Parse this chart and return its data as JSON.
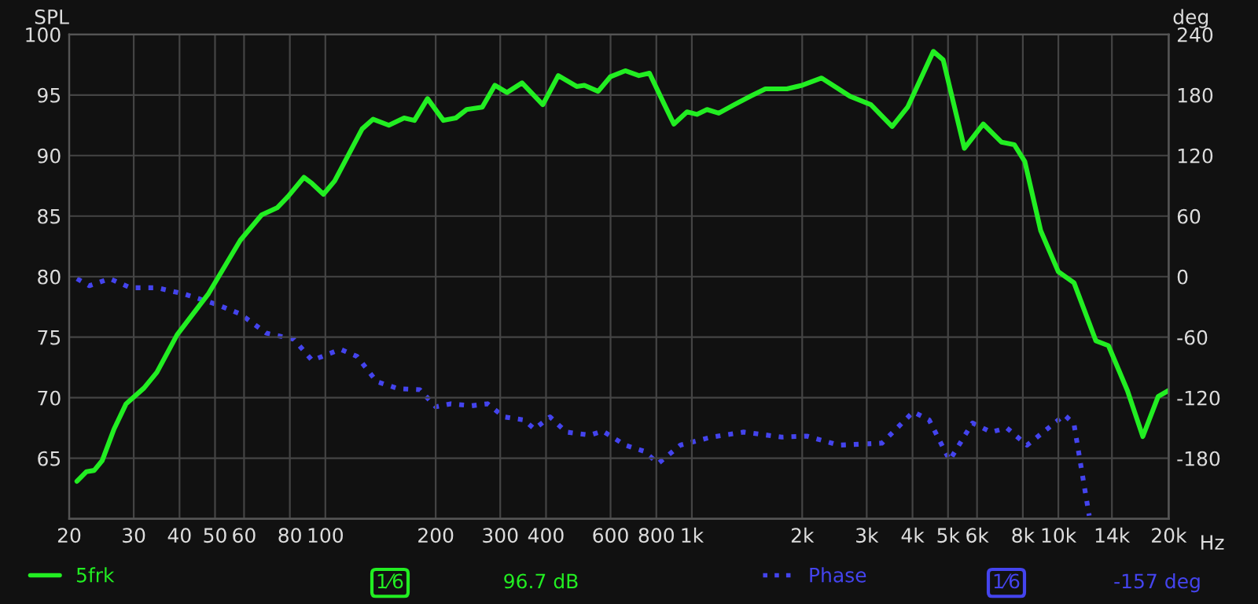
{
  "chart_data": {
    "type": "line",
    "ylabel": "SPL",
    "y2label": "deg",
    "log": "x",
    "grid": true,
    "legend": "bottom",
    "xlim": [
      20,
      20000
    ],
    "xticks": [
      20,
      30,
      40,
      50,
      60,
      80,
      100,
      200,
      300,
      400,
      600,
      800,
      {
        "value": 1000,
        "label": "1k"
      },
      {
        "value": 2000,
        "label": "2k"
      },
      {
        "value": 3000,
        "label": "3k"
      },
      {
        "value": 4000,
        "label": "4k"
      },
      {
        "value": 5000,
        "label": "5k"
      },
      {
        "value": 6000,
        "label": "6k"
      },
      {
        "value": 8000,
        "label": "8k"
      },
      {
        "value": 10000,
        "label": "10k"
      },
      {
        "value": 14000,
        "label": "14k"
      },
      {
        "value": 20000,
        "label": "20k"
      }
    ],
    "xlabel": "Hz",
    "ylim": [
      60,
      100
    ],
    "yticks": [
      65,
      70,
      75,
      80,
      85,
      90,
      95,
      100
    ],
    "y2lim": [
      -240,
      240
    ],
    "y2ticks": [
      -180,
      -120,
      -60,
      0,
      60,
      120,
      180,
      240
    ],
    "series": [
      {
        "name": "5frk",
        "color": "#22ee22",
        "line_style": "solid",
        "x": [
          21,
          22.3,
          23.4,
          24.6,
          26.5,
          28.6,
          32,
          34.7,
          39.4,
          48,
          58.6,
          67,
          74,
          79,
          87.4,
          91.9,
          98.8,
          106,
          126,
          135,
          149,
          164,
          175,
          190,
          210,
          227,
          243,
          268,
          290,
          313,
          344,
          392,
          432,
          485,
          509,
          555,
          599,
          658,
          717,
          766,
          842,
          893,
          970,
          1032,
          1100,
          1184,
          1305,
          1446,
          1587,
          1817,
          2000,
          2260,
          2700,
          3080,
          3520,
          3880,
          4560,
          4850,
          5540,
          6240,
          7000,
          7580,
          8100,
          8950,
          10000,
          11030,
          12660,
          13700,
          15430,
          17000,
          18720,
          20000
        ],
        "values": [
          63.1,
          63.9,
          64.0,
          64.8,
          67.4,
          69.5,
          70.8,
          72.1,
          75.2,
          78.6,
          83.0,
          85.1,
          85.7,
          86.6,
          88.2,
          87.7,
          86.8,
          87.9,
          92.2,
          93.0,
          92.5,
          93.1,
          92.9,
          94.7,
          92.9,
          93.1,
          93.8,
          94.0,
          95.8,
          95.2,
          96.0,
          94.2,
          96.6,
          95.7,
          95.8,
          95.3,
          96.5,
          97.0,
          96.6,
          96.8,
          94.2,
          92.6,
          93.6,
          93.4,
          93.8,
          93.5,
          94.2,
          94.9,
          95.5,
          95.5,
          95.8,
          96.4,
          94.9,
          94.2,
          92.4,
          94.0,
          98.6,
          97.9,
          90.6,
          92.6,
          91.1,
          90.9,
          89.5,
          83.8,
          80.4,
          79.5,
          74.7,
          74.3,
          70.6,
          66.8,
          70.1,
          70.6
        ]
      },
      {
        "name": "Phase",
        "color": "#4444ee",
        "axis": "y2",
        "line_style": "dotted",
        "x": [
          21,
          22.7,
          25.8,
          29.4,
          34.7,
          41,
          50,
          58.6,
          69,
          82,
          92,
          110,
          122,
          138,
          158,
          181,
          200,
          220,
          250,
          277,
          307,
          348,
          372,
          410,
          454,
          528,
          571,
          658,
          740,
          810,
          930,
          1130,
          1384,
          1760,
          2060,
          2520,
          3300,
          4020,
          4440,
          5050,
          5830,
          6550,
          7240,
          8210,
          9400,
          10400,
          11030,
          12140
        ],
        "values": [
          -2,
          -9,
          -2,
          -11,
          -11,
          -17,
          -27,
          -37,
          -56,
          -62,
          -83,
          -72,
          -79,
          -104,
          -111,
          -112,
          -129,
          -126,
          -128,
          -126,
          -139,
          -142,
          -151,
          -139,
          -154,
          -157,
          -153,
          -167,
          -173,
          -185,
          -167,
          -159,
          -154,
          -159,
          -158,
          -167,
          -165,
          -134,
          -142,
          -182,
          -145,
          -154,
          -150,
          -167,
          -150,
          -137,
          -146,
          -237
        ]
      }
    ],
    "annotations": [
      "1⁄6",
      "96.7 dB",
      "1⁄6",
      "-157 deg"
    ]
  }
}
